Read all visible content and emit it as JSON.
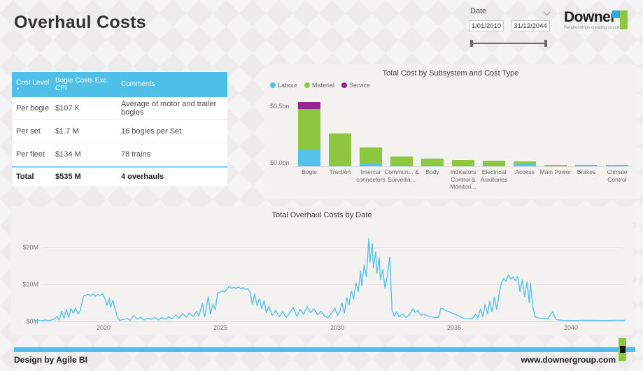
{
  "page": {
    "title": "Overhaul Costs"
  },
  "date_slicer": {
    "label": "Date",
    "start": "1/01/2010",
    "end": "31/12/2044"
  },
  "logo": {
    "name": "Downer",
    "tagline": "Relationships creating success"
  },
  "table": {
    "columns": [
      "Cost Level",
      "Bogie Costs Exc. CPI",
      "Comments"
    ],
    "rows": [
      [
        "Per bogie",
        "$107 K",
        "Average of motor and trailer bogies"
      ],
      [
        "Per set",
        "$1.7 M",
        "16 bogies per Set"
      ],
      [
        "Per fleet",
        "$134 M",
        "78 trains"
      ]
    ],
    "total": [
      "Total",
      "$535 M",
      "4 overhauls"
    ]
  },
  "chart_data": [
    {
      "type": "bar",
      "title": "Total Cost by Subsystem and Cost Type",
      "stacked": true,
      "legend_position": "top-left",
      "categories": [
        "Bogie",
        "Traction",
        "Intercar connectors",
        "Commun... & Surveilla...",
        "Body",
        "Indicators Control & Monitori...",
        "Electrical Auxiliaries",
        "Access",
        "Main Power",
        "Brakes",
        "Climate Control"
      ],
      "series": [
        {
          "name": "Labour",
          "color": "#56c2e8",
          "values": [
            0.145,
            0.006,
            0.022,
            0.008,
            0.012,
            0,
            0,
            0.02,
            0,
            0.012,
            0.012
          ]
        },
        {
          "name": "Material",
          "color": "#8dc63f",
          "values": [
            0.33,
            0.265,
            0.135,
            0.075,
            0.052,
            0.055,
            0.045,
            0.018,
            0.012,
            0,
            0
          ]
        },
        {
          "name": "Service",
          "color": "#92278f",
          "values": [
            0.06,
            0,
            0,
            0,
            0,
            0,
            0,
            0,
            0,
            0,
            0
          ]
        }
      ],
      "y_ticks": [
        "$0.5bn",
        "$0.0bn"
      ],
      "ylim": [
        0,
        0.58
      ],
      "units": "bn"
    },
    {
      "type": "line",
      "title": "Total Overhaul Costs by Date",
      "x_ticks": [
        "2020",
        "2025",
        "2030",
        "2035",
        "2040"
      ],
      "y_ticks": [
        "$0M",
        "$10M",
        "$20M"
      ],
      "ylim": [
        0,
        24
      ],
      "x_range": [
        2017,
        2042.4
      ],
      "grid": "horizontal",
      "series": [
        {
          "name": "Total Overhaul Costs",
          "color": "#56c2e8",
          "points": [
            [
              2017.05,
              0.2
            ],
            [
              2017.2,
              0.35
            ],
            [
              2017.35,
              0.15
            ],
            [
              2017.5,
              0.4
            ],
            [
              2017.65,
              0.2
            ],
            [
              2017.8,
              0.45
            ],
            [
              2017.9,
              0.7
            ],
            [
              2018.0,
              1.3
            ],
            [
              2018.1,
              0.4
            ],
            [
              2018.2,
              2.7
            ],
            [
              2018.3,
              0.9
            ],
            [
              2018.4,
              3.3
            ],
            [
              2018.5,
              1.1
            ],
            [
              2018.6,
              3.5
            ],
            [
              2018.7,
              2.2
            ],
            [
              2018.8,
              3.6
            ],
            [
              2018.9,
              2.0
            ],
            [
              2019.0,
              2.9
            ],
            [
              2019.05,
              4.5
            ],
            [
              2019.15,
              6.9
            ],
            [
              2019.25,
              7.1
            ],
            [
              2019.35,
              7.3
            ],
            [
              2019.45,
              6.8
            ],
            [
              2019.55,
              7.4
            ],
            [
              2019.65,
              6.8
            ],
            [
              2019.75,
              7.3
            ],
            [
              2019.85,
              7.0
            ],
            [
              2019.95,
              7.4
            ],
            [
              2020.05,
              6.4
            ],
            [
              2020.15,
              4.3
            ],
            [
              2020.25,
              6.3
            ],
            [
              2020.3,
              3.8
            ],
            [
              2020.4,
              5.7
            ],
            [
              2020.5,
              3.4
            ],
            [
              2020.6,
              1.1
            ],
            [
              2020.7,
              0.3
            ],
            [
              2020.85,
              0.5
            ],
            [
              2021.0,
              0.8
            ],
            [
              2021.15,
              0.3
            ],
            [
              2021.3,
              1.6
            ],
            [
              2021.45,
              0.6
            ],
            [
              2021.6,
              1.1
            ],
            [
              2021.75,
              0.4
            ],
            [
              2021.9,
              0.9
            ],
            [
              2022.05,
              0.5
            ],
            [
              2022.2,
              1.1
            ],
            [
              2022.35,
              0.4
            ],
            [
              2022.5,
              1.0
            ],
            [
              2022.65,
              0.6
            ],
            [
              2022.8,
              1.2
            ],
            [
              2022.95,
              0.7
            ],
            [
              2023.1,
              1.7
            ],
            [
              2023.25,
              0.9
            ],
            [
              2023.4,
              2.1
            ],
            [
              2023.55,
              1.1
            ],
            [
              2023.7,
              2.3
            ],
            [
              2023.85,
              1.3
            ],
            [
              2024.0,
              2.7
            ],
            [
              2024.1,
              1.5
            ],
            [
              2024.25,
              4.9
            ],
            [
              2024.35,
              1.2
            ],
            [
              2024.5,
              6.6
            ],
            [
              2024.6,
              2.0
            ],
            [
              2024.7,
              4.7
            ],
            [
              2024.8,
              3.1
            ],
            [
              2024.9,
              7.6
            ],
            [
              2025.0,
              7.9
            ],
            [
              2025.1,
              8.3
            ],
            [
              2025.2,
              7.9
            ],
            [
              2025.3,
              8.7
            ],
            [
              2025.4,
              9.5
            ],
            [
              2025.5,
              8.9
            ],
            [
              2025.6,
              9.2
            ],
            [
              2025.7,
              8.9
            ],
            [
              2025.8,
              9.3
            ],
            [
              2025.9,
              8.8
            ],
            [
              2026.0,
              9.1
            ],
            [
              2026.1,
              8.6
            ],
            [
              2026.2,
              8.9
            ],
            [
              2026.3,
              7.8
            ],
            [
              2026.4,
              4.6
            ],
            [
              2026.5,
              7.4
            ],
            [
              2026.6,
              4.2
            ],
            [
              2026.7,
              6.2
            ],
            [
              2026.8,
              3.4
            ],
            [
              2026.9,
              5.6
            ],
            [
              2027.0,
              2.4
            ],
            [
              2027.1,
              4.0
            ],
            [
              2027.25,
              1.6
            ],
            [
              2027.4,
              3.0
            ],
            [
              2027.55,
              1.2
            ],
            [
              2027.7,
              2.6
            ],
            [
              2027.85,
              1.0
            ],
            [
              2028.0,
              2.2
            ],
            [
              2028.15,
              3.8
            ],
            [
              2028.3,
              1.4
            ],
            [
              2028.45,
              3.2
            ],
            [
              2028.6,
              2.0
            ],
            [
              2028.75,
              4.0
            ],
            [
              2028.9,
              2.4
            ],
            [
              2029.05,
              3.4
            ],
            [
              2029.2,
              1.8
            ],
            [
              2029.35,
              2.8
            ],
            [
              2029.5,
              1.4
            ],
            [
              2029.65,
              1.0
            ],
            [
              2029.8,
              2.2
            ],
            [
              2029.95,
              3.6
            ],
            [
              2030.05,
              1.6
            ],
            [
              2030.15,
              2.4
            ],
            [
              2030.25,
              5.0
            ],
            [
              2030.35,
              2.2
            ],
            [
              2030.45,
              6.4
            ],
            [
              2030.55,
              4.4
            ],
            [
              2030.65,
              8.2
            ],
            [
              2030.75,
              6.0
            ],
            [
              2030.85,
              10.4
            ],
            [
              2030.95,
              8.0
            ],
            [
              2031.05,
              13.6
            ],
            [
              2031.1,
              9.6
            ],
            [
              2031.2,
              15.2
            ],
            [
              2031.3,
              12.0
            ],
            [
              2031.4,
              22.4
            ],
            [
              2031.45,
              16.0
            ],
            [
              2031.55,
              21.0
            ],
            [
              2031.6,
              14.4
            ],
            [
              2031.7,
              18.8
            ],
            [
              2031.75,
              13.0
            ],
            [
              2031.85,
              17.2
            ],
            [
              2031.9,
              11.2
            ],
            [
              2032.0,
              14.0
            ],
            [
              2032.1,
              9.0
            ],
            [
              2032.2,
              12.4
            ],
            [
              2032.3,
              17.4
            ],
            [
              2032.4,
              3.0
            ],
            [
              2032.5,
              1.4
            ],
            [
              2032.6,
              2.6
            ],
            [
              2032.7,
              1.2
            ],
            [
              2032.85,
              2.0
            ],
            [
              2033.0,
              1.0
            ],
            [
              2033.15,
              1.8
            ],
            [
              2033.3,
              3.4
            ],
            [
              2033.4,
              2.4
            ],
            [
              2033.5,
              3.0
            ],
            [
              2033.65,
              1.6
            ],
            [
              2033.8,
              2.0
            ],
            [
              2033.95,
              1.4
            ],
            [
              2034.1,
              1.2
            ],
            [
              2034.25,
              1.0
            ],
            [
              2034.4,
              1.1
            ],
            [
              2034.5,
              3.6
            ],
            [
              2035.5,
              0.8
            ],
            [
              2035.85,
              0.7
            ],
            [
              2036.0,
              2.0
            ],
            [
              2036.1,
              0.9
            ],
            [
              2036.2,
              3.4
            ],
            [
              2036.3,
              1.2
            ],
            [
              2036.4,
              4.6
            ],
            [
              2036.5,
              2.0
            ],
            [
              2036.6,
              5.4
            ],
            [
              2036.7,
              2.6
            ],
            [
              2036.8,
              6.6
            ],
            [
              2036.9,
              3.2
            ],
            [
              2037.0,
              7.4
            ],
            [
              2037.1,
              10.4
            ],
            [
              2037.2,
              11.6
            ],
            [
              2037.3,
              10.8
            ],
            [
              2037.4,
              12.6
            ],
            [
              2037.5,
              11.4
            ],
            [
              2037.6,
              12.0
            ],
            [
              2037.7,
              11.0
            ],
            [
              2037.8,
              12.2
            ],
            [
              2037.9,
              8.0
            ],
            [
              2038.0,
              11.2
            ],
            [
              2038.1,
              6.6
            ],
            [
              2038.2,
              10.6
            ],
            [
              2038.3,
              5.0
            ],
            [
              2038.35,
              10.4
            ],
            [
              2038.45,
              4.0
            ],
            [
              2038.55,
              1.2
            ],
            [
              2038.7,
              0.9
            ],
            [
              2038.9,
              0.8
            ],
            [
              2039.1,
              0.7
            ],
            [
              2039.3,
              2.6
            ],
            [
              2039.45,
              0.5
            ],
            [
              2039.7,
              0.3
            ],
            [
              2040.2,
              0.25
            ],
            [
              2040.8,
              0.3
            ],
            [
              2041.5,
              0.25
            ],
            [
              2042.0,
              0.3
            ],
            [
              2042.4,
              0.3
            ]
          ]
        }
      ]
    }
  ],
  "footer": {
    "left": "Design by Agile BI",
    "right": "www.downergroup.com"
  },
  "colors": {
    "accent_blue": "#4ec0e8",
    "labour_blue": "#56c2e8",
    "material_green": "#8dc63f",
    "service_purple": "#92278f",
    "logo_blue": "#29abe2",
    "logo_green": "#8dc63f"
  }
}
